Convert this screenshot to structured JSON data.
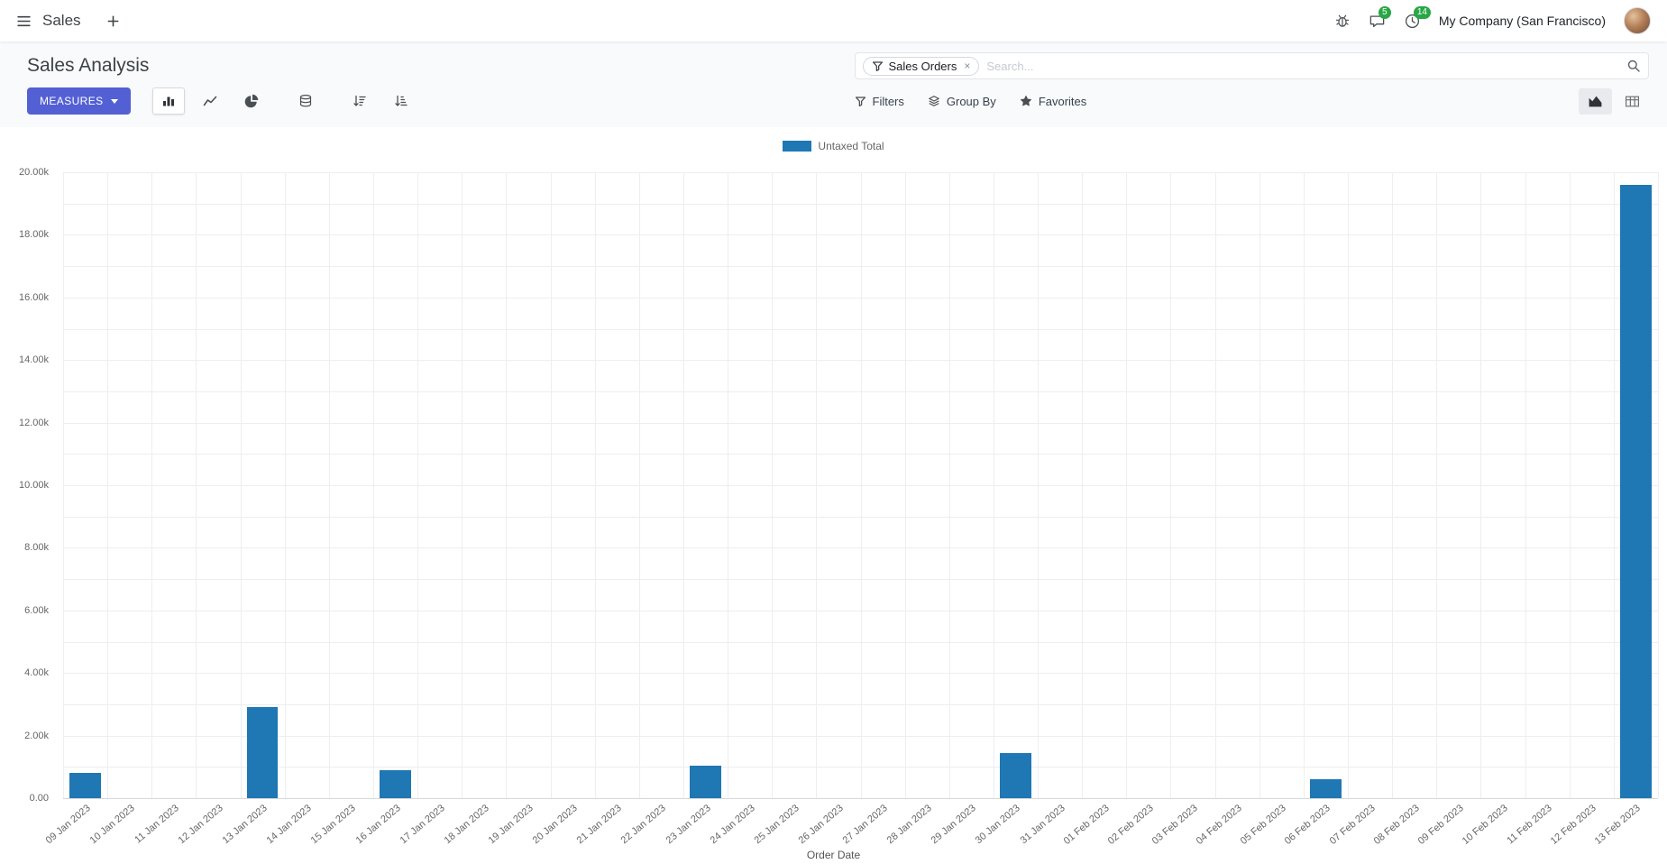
{
  "navbar": {
    "app_menu_label": "Sales",
    "message_badge": "5",
    "activity_badge": "14",
    "company_name": "My Company (San Francisco)"
  },
  "control_panel": {
    "title": "Sales Analysis",
    "measures_button": "MEASURES",
    "search_facet": "Sales Orders",
    "search_placeholder": "Search...",
    "filters_label": "Filters",
    "group_by_label": "Group By",
    "favorites_label": "Favorites"
  },
  "icons": {
    "close": "×"
  },
  "colors": {
    "accent": "#5360d4",
    "badge_green": "#28a745",
    "bar_blue": "#1f77b4"
  },
  "chart_data": {
    "type": "bar",
    "title": "",
    "legend": [
      "Untaxed Total"
    ],
    "legend_position": "top",
    "xlabel": "Order Date",
    "ylabel": "",
    "ylim": [
      0,
      20000
    ],
    "ygrid_step": 1000,
    "ytick_step": 2000,
    "ytick_labels": [
      "0.00",
      "2.00k",
      "4.00k",
      "6.00k",
      "8.00k",
      "10.00k",
      "12.00k",
      "14.00k",
      "16.00k",
      "18.00k",
      "20.00k"
    ],
    "grid": true,
    "bar_color": "#1f77b4",
    "categories": [
      "09 Jan 2023",
      "10 Jan 2023",
      "11 Jan 2023",
      "12 Jan 2023",
      "13 Jan 2023",
      "14 Jan 2023",
      "15 Jan 2023",
      "16 Jan 2023",
      "17 Jan 2023",
      "18 Jan 2023",
      "19 Jan 2023",
      "20 Jan 2023",
      "21 Jan 2023",
      "22 Jan 2023",
      "23 Jan 2023",
      "24 Jan 2023",
      "25 Jan 2023",
      "26 Jan 2023",
      "27 Jan 2023",
      "28 Jan 2023",
      "29 Jan 2023",
      "30 Jan 2023",
      "31 Jan 2023",
      "01 Feb 2023",
      "02 Feb 2023",
      "03 Feb 2023",
      "04 Feb 2023",
      "05 Feb 2023",
      "06 Feb 2023",
      "07 Feb 2023",
      "08 Feb 2023",
      "09 Feb 2023",
      "10 Feb 2023",
      "11 Feb 2023",
      "12 Feb 2023",
      "13 Feb 2023"
    ],
    "values": [
      800,
      0,
      0,
      0,
      2900,
      0,
      0,
      900,
      0,
      0,
      0,
      0,
      0,
      0,
      1050,
      0,
      0,
      0,
      0,
      0,
      0,
      1450,
      0,
      0,
      0,
      0,
      0,
      0,
      600,
      0,
      0,
      0,
      0,
      0,
      0,
      19600
    ]
  }
}
